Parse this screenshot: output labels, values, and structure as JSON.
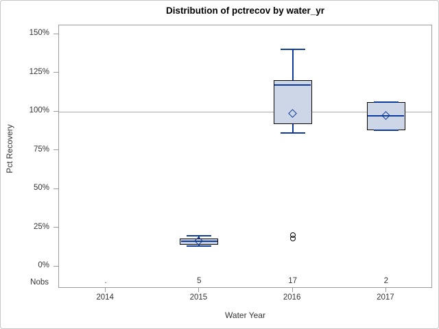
{
  "chart_data": {
    "type": "box",
    "title": "Distribution of pctrecov by water_yr",
    "xlabel": "Water Year",
    "ylabel": "Pct Recovery",
    "nobs_label": "Nobs",
    "ylim": [
      0,
      150
    ],
    "yticks": [
      {
        "value": 150,
        "label": "150%"
      },
      {
        "value": 125,
        "label": "125%"
      },
      {
        "value": 100,
        "label": "100%"
      },
      {
        "value": 75,
        "label": "75%"
      },
      {
        "value": 50,
        "label": "50%"
      },
      {
        "value": 25,
        "label": "25%"
      },
      {
        "value": 0,
        "label": "0%"
      }
    ],
    "reference_line": 100,
    "grid": false,
    "legend": "none",
    "categories": [
      {
        "label": "2014",
        "nobs": ".",
        "box": null,
        "outliers": []
      },
      {
        "label": "2015",
        "nobs": "5",
        "box": {
          "low": 13,
          "q1": 14,
          "median": 16,
          "q3": 18,
          "high": 19.5,
          "mean": 16
        },
        "outliers": []
      },
      {
        "label": "2016",
        "nobs": "17",
        "box": {
          "low": 86,
          "q1": 92,
          "median": 117,
          "q3": 120,
          "high": 140,
          "mean": 98.5
        },
        "outliers": [
          20,
          17.8
        ]
      },
      {
        "label": "2017",
        "nobs": "2",
        "box": {
          "low": 88,
          "q1": 88,
          "median": 97,
          "q3": 106,
          "high": 106,
          "mean": 97
        },
        "outliers": []
      }
    ],
    "colors": {
      "box_fill": "#ccd6e6",
      "box_border": "#000000",
      "line": "#0d3a9b",
      "reference_line": "#a9a9a9",
      "frame": "#9b9b9b",
      "text": "#333333"
    }
  }
}
